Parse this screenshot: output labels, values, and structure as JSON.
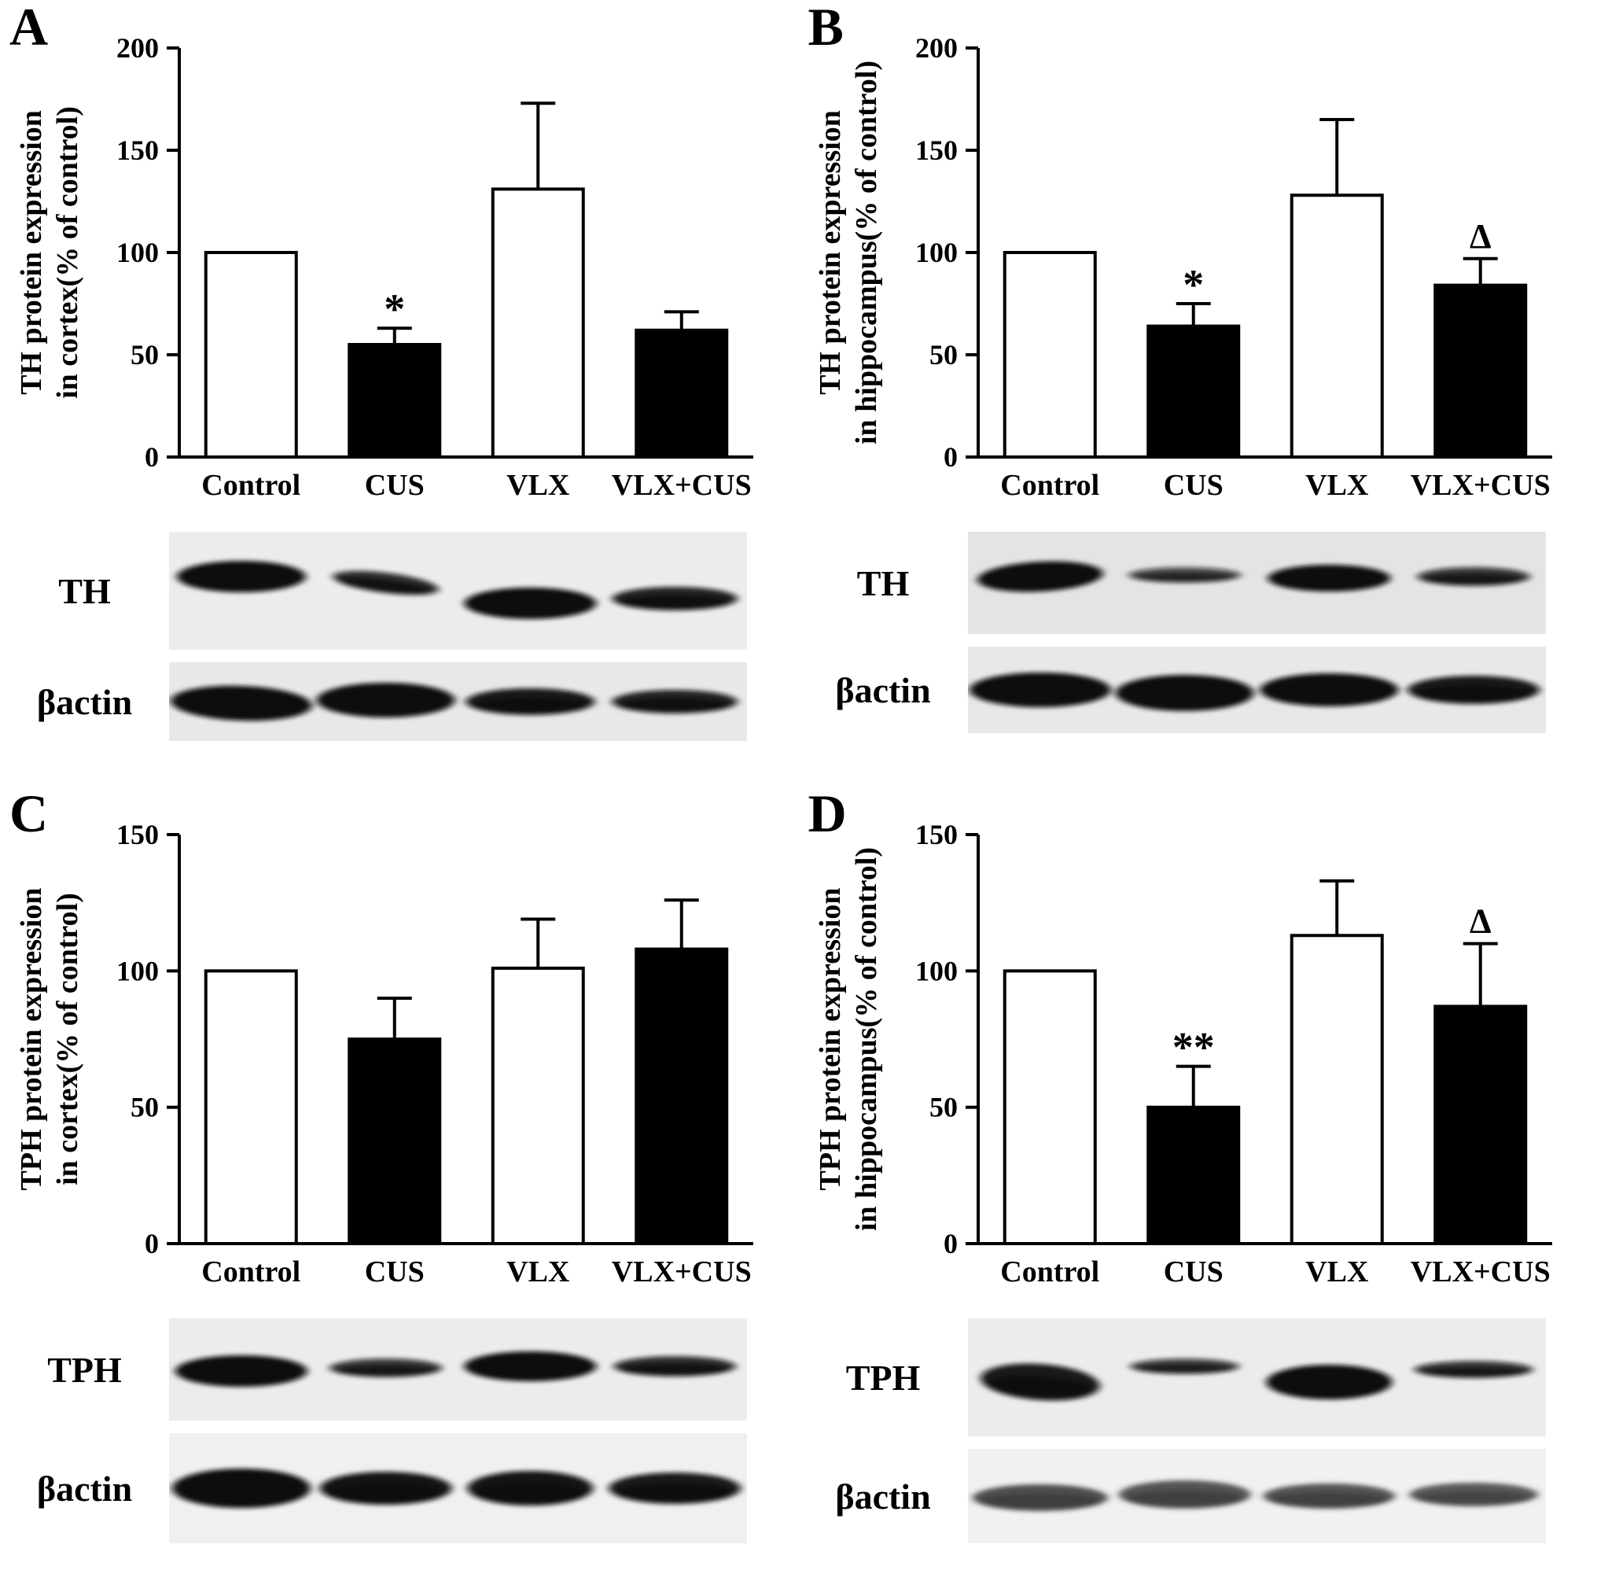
{
  "chart_data": [
    {
      "type": "bar",
      "panel": "A",
      "ylabel_lines": [
        "TH protein expression",
        "in cortex(% of control)"
      ],
      "ylim": [
        0,
        200
      ],
      "yticks": [
        0,
        50,
        100,
        150,
        200
      ],
      "categories": [
        "Control",
        "CUS",
        "VLX",
        "VLX+CUS"
      ],
      "values": [
        100,
        55,
        131,
        62
      ],
      "errors_upper": [
        0,
        8,
        42,
        9
      ],
      "bar_fills": [
        "#ffffff",
        "#000000",
        "#ffffff",
        "#000000"
      ],
      "annotations": [
        "",
        "*",
        "",
        ""
      ]
    },
    {
      "type": "bar",
      "panel": "B",
      "ylabel_lines": [
        "TH protein expression",
        "in hippocampus(% of control)"
      ],
      "ylim": [
        0,
        200
      ],
      "yticks": [
        0,
        50,
        100,
        150,
        200
      ],
      "categories": [
        "Control",
        "CUS",
        "VLX",
        "VLX+CUS"
      ],
      "values": [
        100,
        64,
        128,
        84
      ],
      "errors_upper": [
        0,
        11,
        37,
        13
      ],
      "bar_fills": [
        "#ffffff",
        "#000000",
        "#ffffff",
        "#000000"
      ],
      "annotations": [
        "",
        "*",
        "",
        "Δ"
      ]
    },
    {
      "type": "bar",
      "panel": "C",
      "ylabel_lines": [
        "TPH protein expression",
        "in cortex(% of control)"
      ],
      "ylim": [
        0,
        150
      ],
      "yticks": [
        0,
        50,
        100,
        150
      ],
      "categories": [
        "Control",
        "CUS",
        "VLX",
        "VLX+CUS"
      ],
      "values": [
        100,
        75,
        101,
        108
      ],
      "errors_upper": [
        0,
        15,
        18,
        18
      ],
      "bar_fills": [
        "#ffffff",
        "#000000",
        "#ffffff",
        "#000000"
      ],
      "annotations": [
        "",
        "",
        "",
        ""
      ]
    },
    {
      "type": "bar",
      "panel": "D",
      "ylabel_lines": [
        "TPH protein expression",
        "in hippocampus(% of control)"
      ],
      "ylim": [
        0,
        150
      ],
      "yticks": [
        0,
        50,
        100,
        150
      ],
      "categories": [
        "Control",
        "CUS",
        "VLX",
        "VLX+CUS"
      ],
      "values": [
        100,
        50,
        113,
        87
      ],
      "errors_upper": [
        0,
        15,
        20,
        23
      ],
      "bar_fills": [
        "#ffffff",
        "#000000",
        "#ffffff",
        "#000000"
      ],
      "annotations": [
        "",
        "**",
        "",
        "Δ"
      ]
    }
  ],
  "panels": [
    {
      "letter": "A",
      "blots": [
        {
          "label": "TH",
          "strip_height": 150,
          "bg": "#ececec",
          "band_color": "#0a0a0a",
          "bands": [
            {
              "rx": 82,
              "ry": 20,
              "opacity": 1,
              "dy": -18,
              "rot": 0
            },
            {
              "rx": 68,
              "ry": 13,
              "opacity": 0.85,
              "dy": -10,
              "rot": 7
            },
            {
              "rx": 84,
              "ry": 20,
              "opacity": 1,
              "dy": 16,
              "rot": 0
            },
            {
              "rx": 80,
              "ry": 15,
              "opacity": 0.9,
              "dy": 10,
              "rot": 0
            }
          ]
        },
        {
          "label": "βactin",
          "strip_height": 100,
          "bg": "#e8e8e8",
          "band_color": "#0a0a0a",
          "bands": [
            {
              "rx": 90,
              "ry": 22,
              "opacity": 1,
              "dy": 2,
              "rot": 2
            },
            {
              "rx": 88,
              "ry": 22,
              "opacity": 1,
              "dy": -2,
              "rot": 0
            },
            {
              "rx": 82,
              "ry": 17,
              "opacity": 0.95,
              "dy": 0,
              "rot": 0
            },
            {
              "rx": 80,
              "ry": 15,
              "opacity": 0.9,
              "dy": 0,
              "rot": 0
            }
          ]
        }
      ]
    },
    {
      "letter": "B",
      "blots": [
        {
          "label": "TH",
          "strip_height": 130,
          "bg": "#e4e4e4",
          "band_color": "#0a0a0a",
          "bands": [
            {
              "rx": 80,
              "ry": 19,
              "opacity": 1,
              "dy": -8,
              "rot": -3
            },
            {
              "rx": 72,
              "ry": 10,
              "opacity": 0.7,
              "dy": -10,
              "rot": 0
            },
            {
              "rx": 78,
              "ry": 17,
              "opacity": 1,
              "dy": -6,
              "rot": 0
            },
            {
              "rx": 72,
              "ry": 12,
              "opacity": 0.8,
              "dy": -8,
              "rot": 0
            }
          ]
        },
        {
          "label": "βactin",
          "strip_height": 110,
          "bg": "#e8e8e8",
          "band_color": "#0a0a0a",
          "bands": [
            {
              "rx": 90,
              "ry": 22,
              "opacity": 1,
              "dy": 0,
              "rot": 0
            },
            {
              "rx": 88,
              "ry": 23,
              "opacity": 1,
              "dy": 4,
              "rot": 0
            },
            {
              "rx": 88,
              "ry": 21,
              "opacity": 1,
              "dy": 0,
              "rot": 0
            },
            {
              "rx": 84,
              "ry": 18,
              "opacity": 0.95,
              "dy": 0,
              "rot": 0
            }
          ]
        }
      ]
    },
    {
      "letter": "C",
      "blots": [
        {
          "label": "TPH",
          "strip_height": 130,
          "bg": "#ececec",
          "band_color": "#0a0a0a",
          "bands": [
            {
              "rx": 84,
              "ry": 20,
              "opacity": 1,
              "dy": 2,
              "rot": 0
            },
            {
              "rx": 72,
              "ry": 12,
              "opacity": 0.8,
              "dy": -2,
              "rot": 0
            },
            {
              "rx": 84,
              "ry": 19,
              "opacity": 1,
              "dy": -4,
              "rot": 0
            },
            {
              "rx": 78,
              "ry": 13,
              "opacity": 0.85,
              "dy": -4,
              "rot": 0
            }
          ]
        },
        {
          "label": "βactin",
          "strip_height": 140,
          "bg": "#f0f0f0",
          "band_color": "#0a0a0a",
          "bands": [
            {
              "rx": 88,
              "ry": 25,
              "opacity": 1,
              "dy": 0,
              "rot": 0
            },
            {
              "rx": 84,
              "ry": 21,
              "opacity": 0.97,
              "dy": 0,
              "rot": 0
            },
            {
              "rx": 80,
              "ry": 22,
              "opacity": 0.97,
              "dy": 0,
              "rot": 0
            },
            {
              "rx": 84,
              "ry": 20,
              "opacity": 0.95,
              "dy": 0,
              "rot": 0
            }
          ]
        }
      ]
    },
    {
      "letter": "D",
      "blots": [
        {
          "label": "TPH",
          "strip_height": 150,
          "bg": "#ececec",
          "band_color": "#0a0a0a",
          "bands": [
            {
              "rx": 76,
              "ry": 23,
              "opacity": 0.95,
              "dy": 6,
              "rot": 4
            },
            {
              "rx": 70,
              "ry": 10,
              "opacity": 0.75,
              "dy": -14,
              "rot": 0
            },
            {
              "rx": 80,
              "ry": 22,
              "opacity": 1,
              "dy": 6,
              "rot": 0
            },
            {
              "rx": 76,
              "ry": 11,
              "opacity": 0.8,
              "dy": -10,
              "rot": 0
            }
          ]
        },
        {
          "label": "βactin",
          "strip_height": 120,
          "bg": "#f1f1f1",
          "band_color": "#3f3f3f",
          "bands": [
            {
              "rx": 86,
              "ry": 17,
              "opacity": 0.92,
              "dy": 2,
              "rot": 0
            },
            {
              "rx": 84,
              "ry": 18,
              "opacity": 0.88,
              "dy": -2,
              "rot": 0
            },
            {
              "rx": 84,
              "ry": 16,
              "opacity": 0.88,
              "dy": 0,
              "rot": 0
            },
            {
              "rx": 82,
              "ry": 15,
              "opacity": 0.85,
              "dy": -2,
              "rot": 0
            }
          ]
        }
      ]
    }
  ]
}
